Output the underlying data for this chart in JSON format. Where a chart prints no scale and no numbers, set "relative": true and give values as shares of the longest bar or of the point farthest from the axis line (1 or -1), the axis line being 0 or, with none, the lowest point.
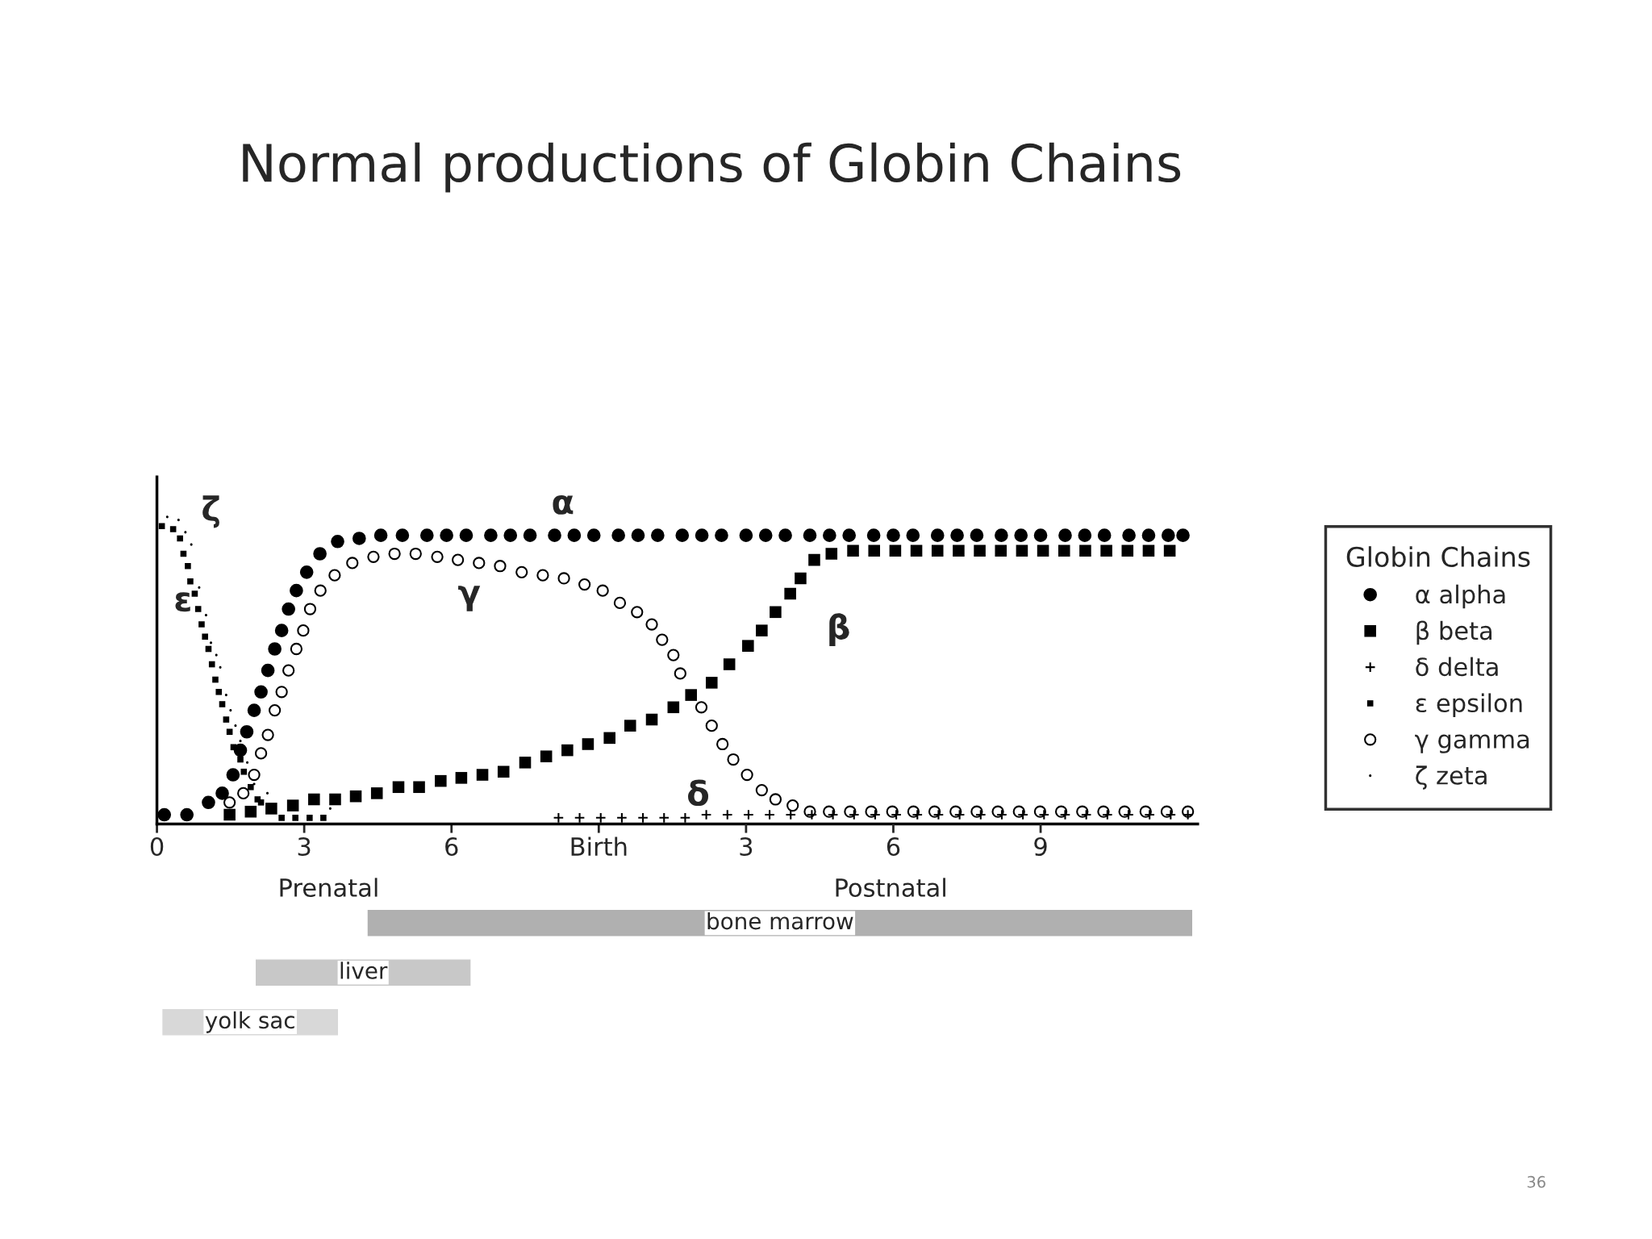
{
  "chart_data": [
    {
      "type": "scatter",
      "title": "Normal productions of Globin Chains",
      "relative": true,
      "legend_title": "Globin Chains",
      "legend": "right",
      "grid": false,
      "xlim": [
        0,
        21.2
      ],
      "xticks": [
        0,
        3,
        6,
        {
          "value": 9,
          "label": "Birth"
        }
      ],
      "x2lim": [
        -9,
        12.2
      ],
      "x2ticks": [
        3,
        6,
        9
      ],
      "series": [
        {
          "name": "α alpha",
          "color": "#000000",
          "marker": "circle",
          "x": [
            0.15,
            0.61,
            1.05,
            1.33,
            1.55,
            1.7,
            1.83,
            1.98,
            2.12,
            2.26,
            2.4,
            2.54,
            2.68,
            2.84,
            3.05,
            3.32,
            3.68,
            4.12,
            4.56,
            5.0,
            5.5,
            5.9,
            6.3,
            6.8,
            7.2,
            7.6,
            8.1,
            8.5,
            8.9,
            9.4,
            9.8,
            10.2,
            10.7,
            11.1,
            11.5,
            12.0,
            12.4,
            12.8,
            13.3,
            13.7,
            14.1,
            14.6,
            15.0,
            15.4,
            15.9,
            16.3,
            16.7,
            17.2,
            17.6,
            18.0,
            18.5,
            18.9,
            19.3,
            19.8,
            20.2,
            20.6,
            20.9
          ],
          "values": [
            0.03,
            0.03,
            0.07,
            0.1,
            0.16,
            0.24,
            0.3,
            0.37,
            0.43,
            0.5,
            0.57,
            0.63,
            0.7,
            0.76,
            0.82,
            0.88,
            0.92,
            0.93,
            0.94,
            0.94,
            0.94,
            0.94,
            0.94,
            0.94,
            0.94,
            0.94,
            0.94,
            0.94,
            0.94,
            0.94,
            0.94,
            0.94,
            0.94,
            0.94,
            0.94,
            0.94,
            0.94,
            0.94,
            0.94,
            0.94,
            0.94,
            0.94,
            0.94,
            0.94,
            0.94,
            0.94,
            0.94,
            0.94,
            0.94,
            0.94,
            0.94,
            0.94,
            0.94,
            0.94,
            0.94,
            0.94,
            0.94
          ]
        },
        {
          "name": "β beta",
          "color": "#000000",
          "marker": "square",
          "x": [
            1.48,
            1.91,
            2.33,
            2.77,
            3.2,
            3.63,
            4.05,
            4.48,
            4.92,
            5.34,
            5.78,
            6.2,
            6.63,
            7.06,
            7.5,
            7.93,
            8.36,
            8.78,
            9.22,
            9.64,
            10.08,
            10.52,
            10.88,
            11.3,
            11.66,
            12.04,
            12.32,
            12.6,
            12.9,
            13.11,
            13.39,
            13.74,
            14.18,
            14.61,
            15.04,
            15.47,
            15.9,
            16.33,
            16.76,
            17.19,
            17.62,
            18.05,
            18.48,
            18.91,
            19.34,
            19.77,
            20.2,
            20.63
          ],
          "values": [
            0.03,
            0.04,
            0.05,
            0.06,
            0.08,
            0.08,
            0.09,
            0.1,
            0.12,
            0.12,
            0.14,
            0.15,
            0.16,
            0.17,
            0.2,
            0.22,
            0.24,
            0.26,
            0.28,
            0.32,
            0.34,
            0.38,
            0.42,
            0.46,
            0.52,
            0.58,
            0.63,
            0.69,
            0.75,
            0.8,
            0.86,
            0.88,
            0.89,
            0.89,
            0.89,
            0.89,
            0.89,
            0.89,
            0.89,
            0.89,
            0.89,
            0.89,
            0.89,
            0.89,
            0.89,
            0.89,
            0.89,
            0.89
          ]
        },
        {
          "name": "δ delta",
          "color": "#000000",
          "marker": "cross",
          "x": [
            8.18,
            8.61,
            9.04,
            9.47,
            9.9,
            10.33,
            10.76,
            11.19,
            11.62,
            12.05,
            12.48,
            12.91,
            13.34,
            13.77,
            14.2,
            14.63,
            15.06,
            15.49,
            15.92,
            16.35,
            16.78,
            17.21,
            17.64,
            18.07,
            18.5,
            18.93,
            19.36,
            19.79,
            20.22,
            20.65,
            21.0
          ],
          "values": [
            0.02,
            0.02,
            0.02,
            0.02,
            0.02,
            0.02,
            0.02,
            0.03,
            0.03,
            0.03,
            0.03,
            0.03,
            0.03,
            0.03,
            0.03,
            0.03,
            0.03,
            0.03,
            0.03,
            0.03,
            0.03,
            0.03,
            0.03,
            0.03,
            0.03,
            0.03,
            0.03,
            0.03,
            0.03,
            0.03,
            0.03
          ]
        },
        {
          "name": "ε epsilon",
          "color": "#000000",
          "marker": "square",
          "x": [
            0.1,
            0.33,
            0.47,
            0.54,
            0.63,
            0.68,
            0.77,
            0.84,
            0.91,
            0.98,
            1.05,
            1.12,
            1.19,
            1.26,
            1.33,
            1.41,
            1.48,
            1.56,
            1.7,
            1.77,
            1.91,
            2.05,
            2.12,
            2.54,
            2.82,
            3.11,
            3.39
          ],
          "values": [
            0.97,
            0.96,
            0.93,
            0.88,
            0.84,
            0.79,
            0.75,
            0.7,
            0.65,
            0.61,
            0.57,
            0.52,
            0.47,
            0.43,
            0.39,
            0.34,
            0.3,
            0.25,
            0.21,
            0.17,
            0.12,
            0.08,
            0.07,
            0.02,
            0.02,
            0.02,
            0.02
          ]
        },
        {
          "name": "γ gamma",
          "color": "#ffffff",
          "marker": "circle",
          "x": [
            1.48,
            1.76,
            1.98,
            2.12,
            2.26,
            2.4,
            2.54,
            2.68,
            2.84,
            2.98,
            3.12,
            3.33,
            3.62,
            3.98,
            4.41,
            4.84,
            5.27,
            5.71,
            6.13,
            6.56,
            6.99,
            7.43,
            7.86,
            8.29,
            8.71,
            9.08,
            9.43,
            9.78,
            10.08,
            10.29,
            10.52,
            10.66,
            11.09,
            11.3,
            11.52,
            11.74,
            12.02,
            12.32,
            12.6,
            12.95,
            13.3,
            13.69,
            14.12,
            14.55,
            14.98,
            15.41,
            15.84,
            16.27,
            16.7,
            17.13,
            17.56,
            17.99,
            18.42,
            18.85,
            19.28,
            19.71,
            20.14,
            20.57,
            21.0
          ],
          "values": [
            0.07,
            0.1,
            0.16,
            0.23,
            0.29,
            0.37,
            0.43,
            0.5,
            0.57,
            0.63,
            0.7,
            0.76,
            0.81,
            0.85,
            0.87,
            0.88,
            0.88,
            0.87,
            0.86,
            0.85,
            0.84,
            0.82,
            0.81,
            0.8,
            0.78,
            0.76,
            0.72,
            0.69,
            0.65,
            0.6,
            0.55,
            0.49,
            0.38,
            0.32,
            0.26,
            0.21,
            0.16,
            0.11,
            0.08,
            0.06,
            0.04,
            0.04,
            0.04,
            0.04,
            0.04,
            0.04,
            0.04,
            0.04,
            0.04,
            0.04,
            0.04,
            0.04,
            0.04,
            0.04,
            0.04,
            0.04,
            0.04,
            0.04,
            0.04
          ]
        },
        {
          "name": "ζ zeta",
          "color": "#000000",
          "marker": "point",
          "x": [
            0.21,
            0.44,
            0.58,
            0.7,
            0.86,
            1.0,
            1.1,
            1.21,
            1.29,
            1.41,
            1.5,
            1.6,
            1.7,
            1.84,
            1.98,
            2.25,
            3.53
          ],
          "values": [
            1.0,
            0.99,
            0.95,
            0.91,
            0.77,
            0.68,
            0.59,
            0.55,
            0.51,
            0.42,
            0.37,
            0.32,
            0.27,
            0.2,
            0.13,
            0.1,
            0.05
          ]
        }
      ],
      "annotations": [
        "α",
        "β",
        "γ",
        "δ",
        "ε",
        "ζ",
        "Prenatal",
        "Postnatal",
        "36"
      ]
    },
    {
      "type": "bar",
      "orientation": "horizontal",
      "categories": [
        "bone marrow",
        "liver",
        "yolk sac"
      ],
      "base": [
        4.28,
        2.0,
        0.1
      ],
      "values": [
        16.82,
        4.4,
        3.6
      ],
      "colors": [
        "#b0b0b0",
        "#c8c8c8",
        "#d8d8d8"
      ],
      "xlim": [
        0,
        21.2
      ],
      "tick_labels": false
    }
  ]
}
